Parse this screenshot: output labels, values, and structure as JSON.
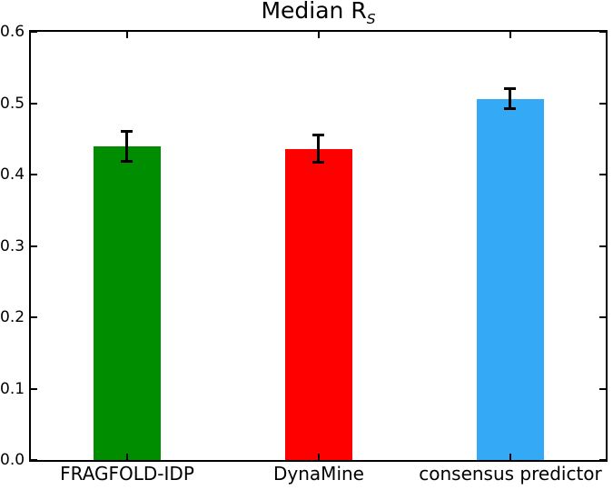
{
  "figure": {
    "background": "#ffffff",
    "axis_color": "#000000"
  },
  "chart_data": {
    "type": "bar",
    "title": "Median R_S",
    "title_main": "Median R",
    "title_sub": "S",
    "categories": [
      "FRAGFOLD-IDP",
      "DynaMine",
      "consensus predictor"
    ],
    "values": [
      0.44,
      0.436,
      0.506
    ],
    "errors": [
      0.021,
      0.019,
      0.014
    ],
    "bar_colors": [
      "#008d00",
      "#ff0000",
      "#34aaf7"
    ],
    "error_bar_color": "#000000",
    "ylim": [
      0.0,
      0.6
    ],
    "yticks": [
      "0.0",
      "0.1",
      "0.2",
      "0.3",
      "0.4",
      "0.5",
      "0.6"
    ],
    "xlabel": "",
    "ylabel": "",
    "grid": false,
    "legend": "none",
    "tick_direction": "in"
  }
}
